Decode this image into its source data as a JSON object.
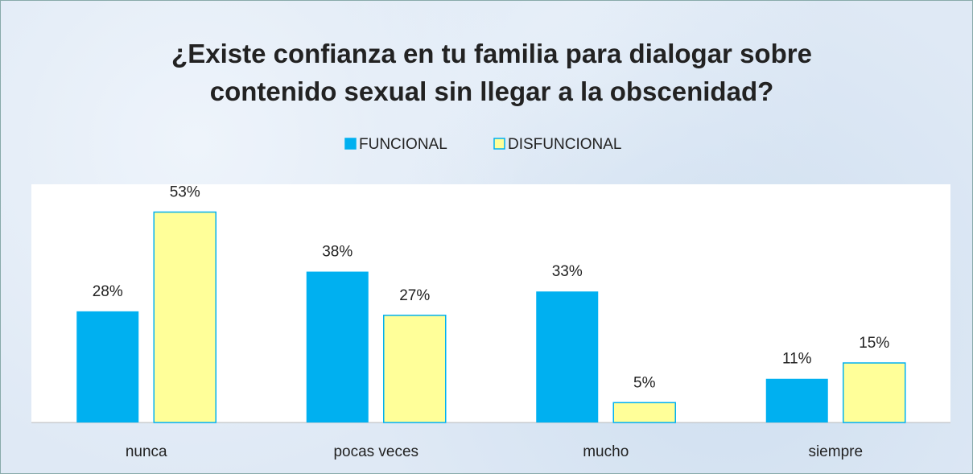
{
  "chart_data": {
    "type": "bar",
    "title": "¿Existe  confianza  en tu familia para  dialogar sobre contenido sexual sin llegar a la obscenidad?",
    "categories": [
      "nunca",
      "pocas veces",
      "mucho",
      "siempre"
    ],
    "series": [
      {
        "name": "FUNCIONAL",
        "color": "#00b0f0",
        "values": [
          28,
          38,
          33,
          11
        ],
        "value_labels": [
          "28%",
          "38%",
          "33%",
          "11%"
        ]
      },
      {
        "name": "DISFUNCIONAL",
        "color": "#ffff99",
        "values": [
          53,
          27,
          5,
          15
        ],
        "value_labels": [
          "53%",
          "27%",
          "5%",
          "15%"
        ]
      }
    ],
    "ylim": [
      0,
      60
    ],
    "legend": "top"
  }
}
